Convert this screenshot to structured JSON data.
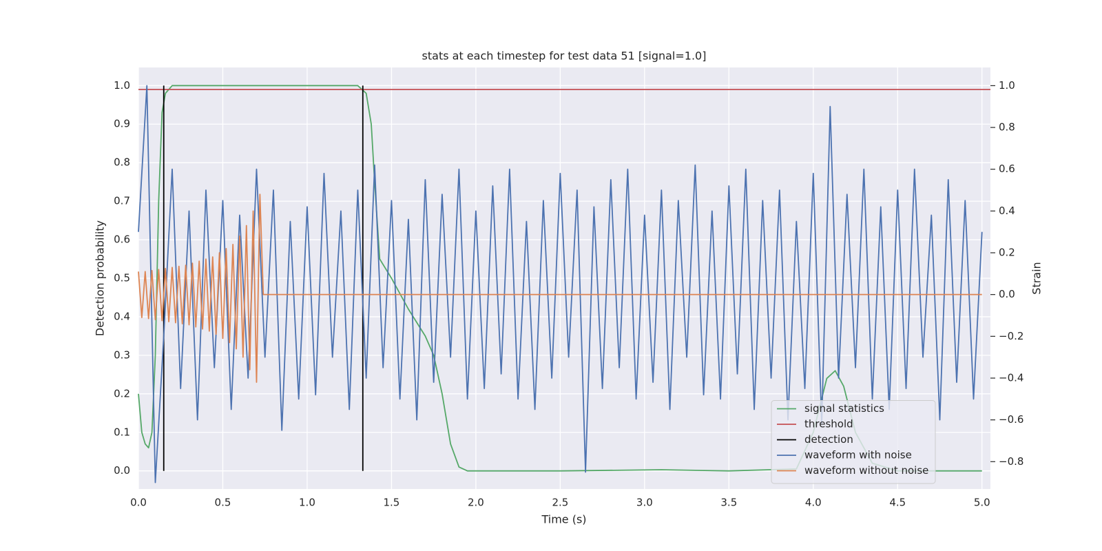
{
  "chart_data": {
    "type": "line",
    "title": "stats at each timestep for test data 51 [signal=1.0]",
    "x_label": "Time (s)",
    "y_label": "Detection probability",
    "y2_label": "Strain",
    "xlim": [
      0,
      5.05
    ],
    "ylim": [
      -0.047,
      1.047
    ],
    "y2lim": [
      -0.931,
      1.087
    ],
    "xticks": [
      {
        "value": 0,
        "label": "0.0"
      },
      0.5,
      {
        "value": 1,
        "label": "1.0"
      },
      1.5,
      {
        "value": 2,
        "label": "2.0"
      },
      2.5,
      {
        "value": 3,
        "label": "3.0"
      },
      3.5,
      {
        "value": 4,
        "label": "4.0"
      },
      4.5,
      {
        "value": 5,
        "label": "5.0"
      }
    ],
    "yticks": [
      {
        "value": 0,
        "label": "0.0"
      },
      0.1,
      0.2,
      0.3,
      0.4,
      0.5,
      0.6,
      0.7,
      0.8,
      0.9,
      {
        "value": 1,
        "label": "1.0"
      }
    ],
    "y2ticks": [
      {
        "value": -0.8,
        "label": "−0.8"
      },
      {
        "value": -0.6,
        "label": "−0.6"
      },
      {
        "value": -0.4,
        "label": "−0.4"
      },
      {
        "value": -0.2,
        "label": "−0.2"
      },
      {
        "value": 0,
        "label": "0.0"
      },
      0.2,
      0.4,
      0.6,
      0.8,
      {
        "value": 1,
        "label": "1.0"
      }
    ],
    "grid": true,
    "legend": "lower right",
    "series": [
      {
        "name": "signal statistics",
        "color": "#55a868",
        "axis": "y",
        "x": [
          0,
          0.02,
          0.04,
          0.06,
          0.08,
          0.1,
          0.12,
          0.14,
          0.16,
          0.2,
          1.3,
          1.35,
          1.38,
          1.4,
          1.43,
          1.5,
          1.6,
          1.7,
          1.75,
          1.8,
          1.85,
          1.9,
          1.95,
          2.5,
          3.1,
          3.5,
          3.9,
          4.0,
          4.08,
          4.13,
          4.18,
          4.25,
          4.35,
          4.5,
          5.0
        ],
        "values": [
          0.2,
          0.1,
          0.07,
          0.06,
          0.1,
          0.3,
          0.7,
          0.93,
          0.98,
          1.0,
          1.0,
          0.98,
          0.9,
          0.75,
          0.55,
          0.5,
          0.42,
          0.35,
          0.3,
          0.2,
          0.07,
          0.01,
          0.0,
          0.0,
          0.003,
          0.0,
          0.005,
          0.1,
          0.24,
          0.26,
          0.22,
          0.1,
          0.02,
          0.0,
          0.0
        ]
      },
      {
        "name": "threshold",
        "color": "#c44e52",
        "axis": "y",
        "x": [
          0,
          5.05
        ],
        "values": [
          0.99,
          0.99
        ]
      },
      {
        "name": "detection",
        "color": "#000000",
        "axis": "y",
        "x": [
          0.15,
          0.15,
          0.74,
          1.33,
          1.33
        ],
        "values": [
          0,
          1,
          null,
          0,
          1
        ]
      },
      {
        "name": "waveform with noise",
        "color": "#4c72b0",
        "axis": "y2",
        "x": [
          0,
          0.05,
          0.1,
          0.15,
          0.2,
          0.25,
          0.3,
          0.35,
          0.4,
          0.45,
          0.5,
          0.55,
          0.6,
          0.65,
          0.7,
          0.75,
          0.8,
          0.85,
          0.9,
          0.95,
          1.0,
          1.05,
          1.1,
          1.15,
          1.2,
          1.25,
          1.3,
          1.35,
          1.4,
          1.45,
          1.5,
          1.55,
          1.6,
          1.65,
          1.7,
          1.75,
          1.8,
          1.85,
          1.9,
          1.95,
          2.0,
          2.05,
          2.1,
          2.15,
          2.2,
          2.25,
          2.3,
          2.35,
          2.4,
          2.45,
          2.5,
          2.55,
          2.6,
          2.65,
          2.7,
          2.75,
          2.8,
          2.85,
          2.9,
          2.95,
          3.0,
          3.05,
          3.1,
          3.15,
          3.2,
          3.25,
          3.3,
          3.35,
          3.4,
          3.45,
          3.5,
          3.55,
          3.6,
          3.65,
          3.7,
          3.75,
          3.8,
          3.85,
          3.9,
          3.95,
          4.0,
          4.05,
          4.1,
          4.15,
          4.2,
          4.25,
          4.3,
          4.35,
          4.4,
          4.45,
          4.5,
          4.55,
          4.6,
          4.65,
          4.7,
          4.75,
          4.8,
          4.85,
          4.9,
          4.95,
          5.0
        ],
        "values": [
          0.3,
          1.0,
          -0.9,
          -0.2,
          0.6,
          -0.45,
          0.4,
          -0.6,
          0.5,
          -0.35,
          0.45,
          -0.55,
          0.38,
          -0.4,
          0.6,
          -0.3,
          0.5,
          -0.65,
          0.35,
          -0.5,
          0.42,
          -0.48,
          0.58,
          -0.3,
          0.4,
          -0.55,
          0.5,
          -0.4,
          0.62,
          -0.35,
          0.45,
          -0.5,
          0.36,
          -0.6,
          0.55,
          -0.42,
          0.48,
          -0.3,
          0.6,
          -0.5,
          0.4,
          -0.45,
          0.52,
          -0.38,
          0.6,
          -0.5,
          0.35,
          -0.55,
          0.45,
          -0.4,
          0.58,
          -0.3,
          0.5,
          -0.85,
          0.42,
          -0.45,
          0.55,
          -0.35,
          0.6,
          -0.5,
          0.38,
          -0.42,
          0.5,
          -0.55,
          0.45,
          -0.3,
          0.62,
          -0.48,
          0.4,
          -0.5,
          0.52,
          -0.38,
          0.6,
          -0.55,
          0.45,
          -0.4,
          0.5,
          -0.6,
          0.35,
          -0.45,
          0.58,
          -0.62,
          0.9,
          -0.4,
          0.48,
          -0.35,
          0.6,
          -0.5,
          0.42,
          -0.55,
          0.5,
          -0.45,
          0.6,
          -0.3,
          0.38,
          -0.6,
          0.55,
          -0.42,
          0.45,
          -0.5,
          0.3
        ]
      },
      {
        "name": "waveform without noise",
        "color": "#dd8452",
        "axis": "y2",
        "x": [
          0,
          0.02,
          0.04,
          0.06,
          0.08,
          0.1,
          0.12,
          0.14,
          0.16,
          0.18,
          0.2,
          0.22,
          0.24,
          0.26,
          0.28,
          0.3,
          0.32,
          0.34,
          0.36,
          0.38,
          0.4,
          0.42,
          0.44,
          0.46,
          0.48,
          0.5,
          0.52,
          0.54,
          0.56,
          0.58,
          0.6,
          0.62,
          0.64,
          0.66,
          0.68,
          0.7,
          0.72,
          0.74,
          5.0
        ],
        "values": [
          0.11,
          -0.11,
          0.11,
          -0.115,
          0.115,
          -0.12,
          0.12,
          -0.125,
          0.125,
          -0.13,
          0.13,
          -0.135,
          0.135,
          -0.14,
          0.14,
          -0.145,
          0.15,
          -0.155,
          0.16,
          -0.165,
          0.17,
          -0.175,
          0.18,
          -0.19,
          0.2,
          -0.21,
          0.22,
          -0.23,
          0.24,
          -0.26,
          0.28,
          -0.3,
          0.33,
          -0.36,
          0.4,
          -0.42,
          0.48,
          0,
          0
        ]
      }
    ]
  }
}
